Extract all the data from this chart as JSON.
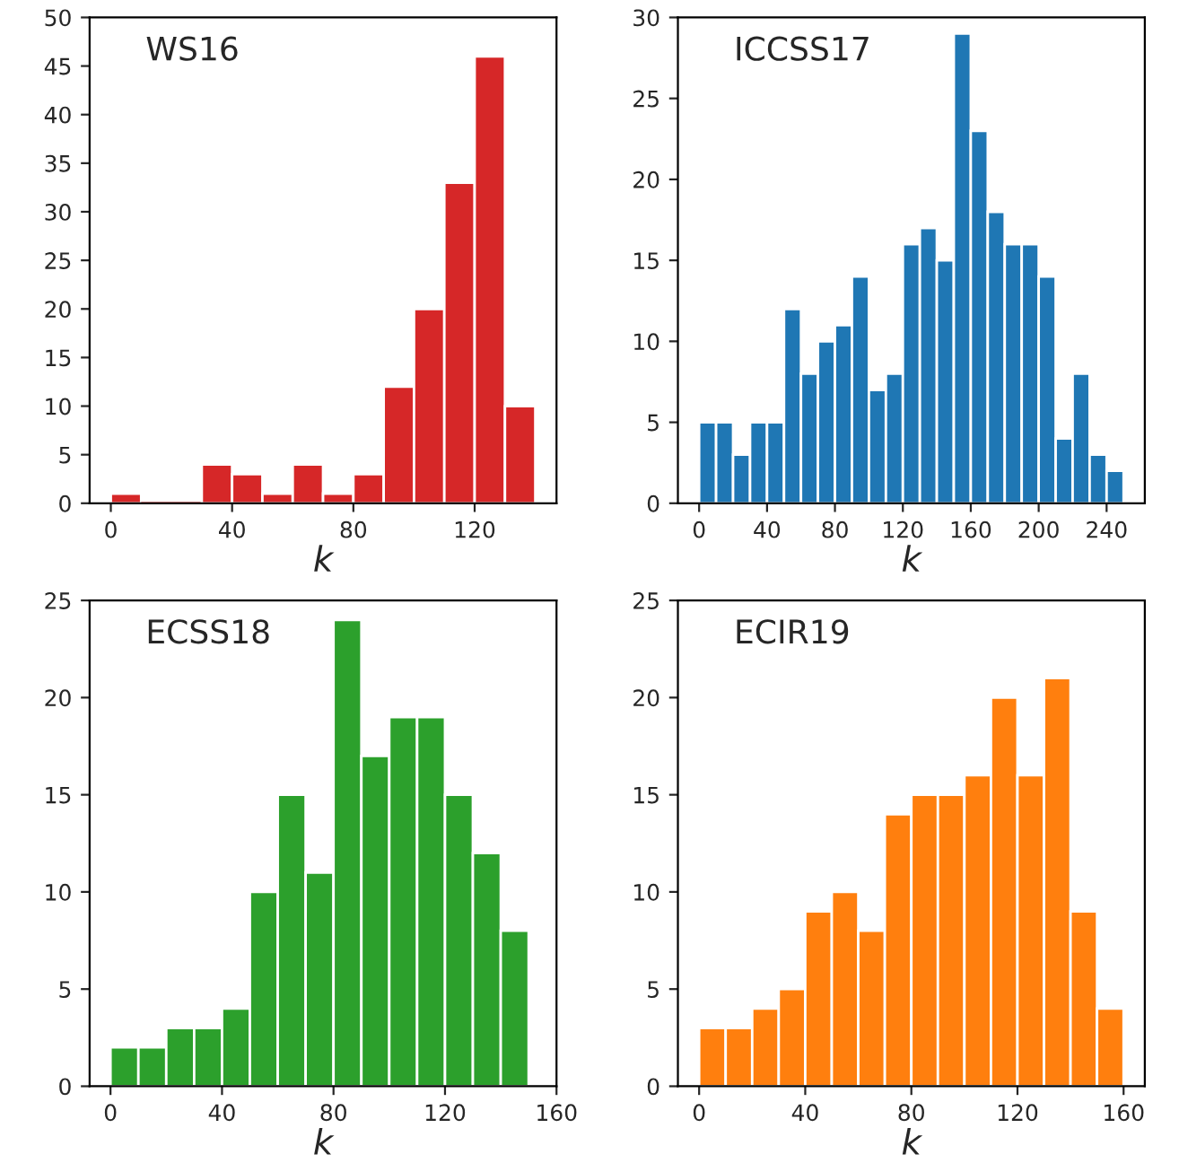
{
  "chart_data": [
    {
      "type": "histogram",
      "title": "WS16",
      "xlabel": "k",
      "color": "#d62728",
      "bins": [
        0,
        10,
        20,
        30,
        40,
        50,
        60,
        70,
        80,
        90,
        100,
        110,
        120,
        130,
        140
      ],
      "values": [
        1,
        0,
        0,
        4,
        3,
        1,
        4,
        1,
        3,
        12,
        20,
        33,
        46,
        10
      ],
      "xlim": [
        -7,
        147
      ],
      "xticks": [
        0,
        40,
        80,
        120
      ],
      "ylim": [
        0,
        50
      ],
      "yticks": [
        0,
        5,
        10,
        15,
        20,
        25,
        30,
        35,
        40,
        45,
        50
      ]
    },
    {
      "type": "histogram",
      "title": "ICCSS17",
      "xlabel": "k",
      "color": "#1f77b4",
      "bins": [
        0,
        10,
        20,
        30,
        40,
        50,
        60,
        70,
        80,
        90,
        100,
        110,
        120,
        130,
        140,
        150,
        160,
        170,
        180,
        190,
        200,
        210,
        220,
        230,
        240,
        250
      ],
      "values": [
        5,
        5,
        3,
        5,
        5,
        12,
        8,
        10,
        11,
        14,
        7,
        8,
        16,
        17,
        15,
        29,
        23,
        18,
        16,
        16,
        14,
        4,
        8,
        3,
        2
      ],
      "xlim": [
        -12.5,
        262.5
      ],
      "xticks": [
        0,
        40,
        80,
        120,
        160,
        200,
        240
      ],
      "ylim": [
        0,
        30
      ],
      "yticks": [
        0,
        5,
        10,
        15,
        20,
        25,
        30
      ]
    },
    {
      "type": "histogram",
      "title": "ECSS18",
      "xlabel": "k",
      "color": "#2ca02c",
      "bins": [
        0,
        10,
        20,
        30,
        40,
        50,
        60,
        70,
        80,
        90,
        100,
        110,
        120,
        130,
        140,
        150
      ],
      "values": [
        2,
        2,
        3,
        3,
        4,
        10,
        15,
        11,
        24,
        17,
        19,
        19,
        15,
        12,
        8
      ],
      "xlim": [
        -7.5,
        160
      ],
      "xticks": [
        0,
        40,
        80,
        120,
        160
      ],
      "ylim": [
        0,
        25
      ],
      "yticks": [
        0,
        5,
        10,
        15,
        20,
        25
      ]
    },
    {
      "type": "histogram",
      "title": "ECIR19",
      "xlabel": "k",
      "color": "#ff7f0e",
      "bins": [
        0,
        10,
        20,
        30,
        40,
        50,
        60,
        70,
        80,
        90,
        100,
        110,
        120,
        130,
        140,
        150,
        160
      ],
      "values": [
        3,
        3,
        4,
        5,
        9,
        10,
        8,
        14,
        15,
        15,
        16,
        20,
        16,
        21,
        9,
        4
      ],
      "xlim": [
        -8,
        168
      ],
      "xticks": [
        0,
        40,
        80,
        120,
        160
      ],
      "ylim": [
        0,
        25
      ],
      "yticks": [
        0,
        5,
        10,
        15,
        20,
        25
      ]
    }
  ]
}
